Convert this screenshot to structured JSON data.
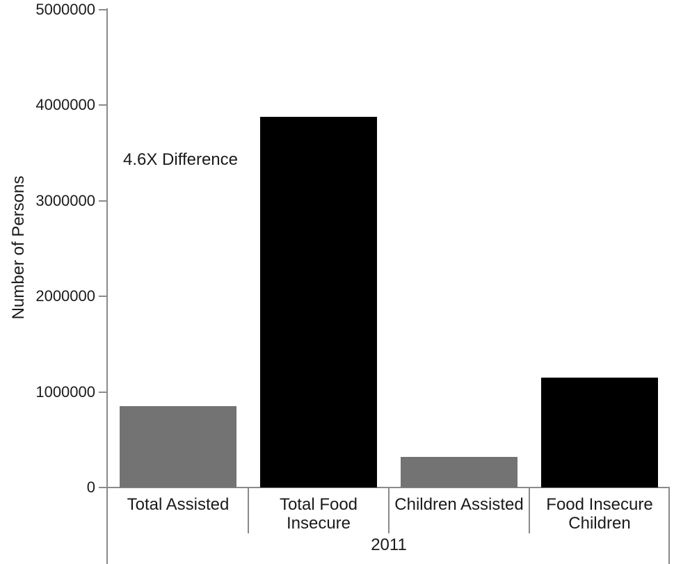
{
  "chart_data": {
    "type": "bar",
    "title": "",
    "xlabel": "2011",
    "ylabel": "Number of Persons",
    "ylim": [
      0,
      5000000
    ],
    "yticks": [
      0,
      1000000,
      2000000,
      3000000,
      4000000,
      5000000
    ],
    "grid": false,
    "legend": "none",
    "categories": [
      "Total Assisted",
      "Total Food Insecure",
      "Children Assisted",
      "Food Insecure Children"
    ],
    "category_lines": [
      [
        "Total Assisted"
      ],
      [
        "Total Food",
        "Insecure"
      ],
      [
        "Children Assisted"
      ],
      [
        "Food Insecure",
        "Children"
      ]
    ],
    "values": [
      850000,
      3880000,
      320000,
      1150000
    ],
    "bar_colors": [
      "#737373",
      "#000000",
      "#737373",
      "#000000"
    ],
    "group_label": "2011",
    "annotation": {
      "text": "4.6X Difference"
    }
  },
  "colors": {
    "background": "#ffffff",
    "axis_line": "#8a8a8a",
    "text": "#1a1a1a",
    "bar_gray": "#737373",
    "bar_black": "#000000"
  }
}
